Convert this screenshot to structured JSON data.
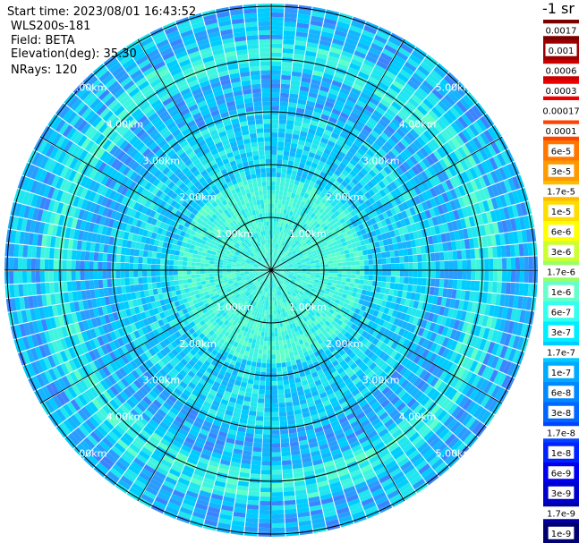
{
  "header": {
    "start_time": "Start time: 2023/08/01 16:43:52",
    "instrument": "WLS200s-181",
    "field": "Field: BETA",
    "elevation": "Elevation(deg): 35.30",
    "nrays": "NRays: 120"
  },
  "colorbar": {
    "title": "-1 sr",
    "labels": [
      "0.0017",
      "0.001",
      "0.0006",
      "0.0003",
      "0.00017",
      "0.0001",
      "6e-5",
      "3e-5",
      "1.7e-5",
      "1e-5",
      "6e-6",
      "3e-6",
      "1.7e-6",
      "1e-6",
      "6e-7",
      "3e-7",
      "1.7e-7",
      "1e-7",
      "6e-8",
      "3e-8",
      "1.7e-8",
      "1e-8",
      "6e-9",
      "3e-9",
      "1.7e-9",
      "1e-9"
    ],
    "colors": [
      "#7a0000",
      "#9a0000",
      "#c80000",
      "#ee0000",
      "#ffffff",
      "#ff4400",
      "#ff7700",
      "#ff9900",
      "#ffbb00",
      "#ffdd00",
      "#ffff00",
      "#ccff33",
      "#99ff66",
      "#66ffcc",
      "#33ffee",
      "#00eeff",
      "#00ccff",
      "#00aaff",
      "#0088ff",
      "#0066ff",
      "#0044ff",
      "#0022ff",
      "#0000ee",
      "#0000cc",
      "#0000a0",
      "#000070"
    ]
  },
  "chart_data": {
    "type": "heatmap",
    "projection": "polar-ppi",
    "range_ring_labels": [
      "1.00km",
      "2.00km",
      "3.00km",
      "4.00km",
      "5.00km"
    ],
    "range_rings_km": [
      1,
      2,
      3,
      4,
      5
    ],
    "max_range_km": 5.05,
    "azimuth_lines_deg": [
      0,
      30,
      60,
      90,
      120,
      150,
      180,
      210,
      240,
      270,
      300,
      330
    ],
    "n_rays": 120,
    "value_distribution": "mostly 6e-8 to 1e-6 (cyan/light-blue), darker blue 1e-8 to 6e-8 patches, green-yellow 1.7e-7 to 1e-6 near center and in an outer band around 4.5 km",
    "grid": true
  }
}
